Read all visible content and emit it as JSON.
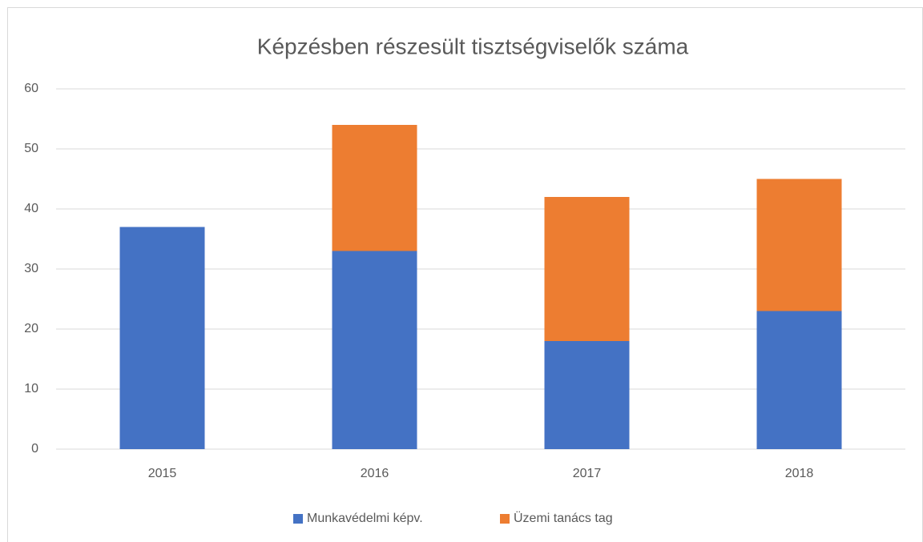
{
  "chart_data": {
    "type": "bar",
    "stacked": true,
    "title": "Képzésben részesült tisztségviselők száma",
    "categories": [
      "2015",
      "2016",
      "2017",
      "2018"
    ],
    "series": [
      {
        "name": "Munkavédelmi képv.",
        "color": "#4472c4",
        "values": [
          37,
          33,
          18,
          23
        ]
      },
      {
        "name": "Üzemi tanács tag",
        "color": "#ed7d31",
        "values": [
          null,
          21,
          24,
          22
        ]
      }
    ],
    "ylim": [
      0,
      60
    ],
    "yticks": [
      0,
      10,
      20,
      30,
      40,
      50,
      60
    ],
    "grid": true,
    "legend": "bottom"
  }
}
